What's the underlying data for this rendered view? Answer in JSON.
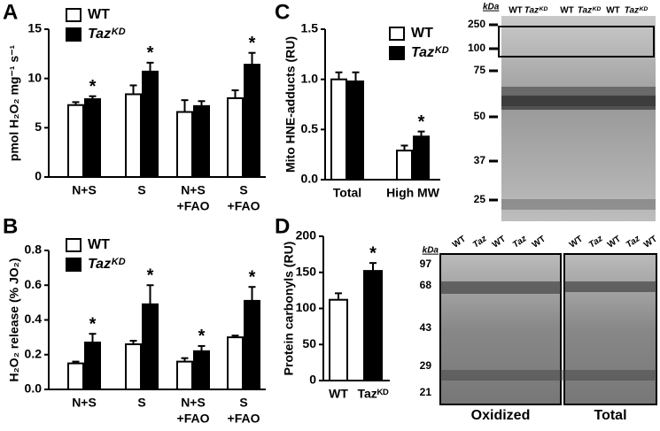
{
  "panels": [
    "A",
    "B",
    "C",
    "D"
  ],
  "chart_data": [
    {
      "type": "bar",
      "ylabel": "pmol H₂O₂ mg⁻¹ s⁻¹",
      "categories": [
        [
          "N+S"
        ],
        [
          "S"
        ],
        [
          "N+S",
          "+FAO"
        ],
        [
          "S",
          "+FAO"
        ]
      ],
      "series": [
        {
          "name": "WT",
          "color": "#ffffff",
          "values": [
            7.3,
            8.4,
            6.6,
            8.0
          ],
          "errors": [
            0.3,
            0.9,
            1.2,
            0.8
          ]
        },
        {
          "name": "Tazᴷᴰ",
          "color": "#000000",
          "values": [
            7.9,
            10.7,
            7.2,
            11.4
          ],
          "errors": [
            0.3,
            0.9,
            0.5,
            1.2
          ]
        }
      ],
      "markers": [
        "*",
        "*",
        null,
        "*"
      ],
      "ylim": [
        0,
        15
      ],
      "yticks": [
        0,
        5,
        10,
        15
      ]
    },
    {
      "type": "bar",
      "ylabel": "H₂O₂ release (% JO₂)",
      "categories": [
        [
          "N+S"
        ],
        [
          "S"
        ],
        [
          "N+S",
          "+FAO"
        ],
        [
          "S",
          "+FAO"
        ]
      ],
      "series": [
        {
          "name": "WT",
          "color": "#ffffff",
          "values": [
            0.15,
            0.26,
            0.16,
            0.3
          ],
          "errors": [
            0.01,
            0.02,
            0.02,
            0.01
          ]
        },
        {
          "name": "Tazᴷᴰ",
          "color": "#000000",
          "values": [
            0.27,
            0.49,
            0.22,
            0.51
          ],
          "errors": [
            0.05,
            0.11,
            0.03,
            0.08
          ]
        }
      ],
      "markers": [
        "*",
        "*",
        "*",
        "*"
      ],
      "ylim": [
        0,
        0.8
      ],
      "yticks": [
        {
          "value": 0,
          "label": "0.0"
        },
        0.2,
        0.4,
        0.6,
        0.8
      ]
    },
    {
      "type": "bar",
      "ylabel": "Mito HNE-adducts (RU)",
      "categories": [
        [
          "Total"
        ],
        [
          "High MW"
        ]
      ],
      "series": [
        {
          "name": "WT",
          "color": "#ffffff",
          "values": [
            1.0,
            0.29
          ],
          "errors": [
            0.07,
            0.05
          ]
        },
        {
          "name": "Tazᴷᴰ",
          "color": "#000000",
          "values": [
            0.98,
            0.43
          ],
          "errors": [
            0.09,
            0.05
          ]
        }
      ],
      "markers": [
        null,
        "*"
      ],
      "ylim": [
        0,
        1.5
      ],
      "yticks": [
        {
          "value": 0,
          "label": "0.0"
        },
        0.5,
        {
          "value": 1,
          "label": "1.0"
        },
        1.5
      ]
    },
    {
      "type": "bar",
      "ylabel": "Protein carbonyls (RU)",
      "categories": [
        [
          "WT"
        ],
        [
          "Tazᴷᴰ"
        ]
      ],
      "values": [
        112,
        152
      ],
      "errors": [
        9,
        11
      ],
      "colors": [
        "#ffffff",
        "#000000"
      ],
      "markers": [
        null,
        "*"
      ],
      "ylim": [
        0,
        200
      ],
      "yticks": [
        0,
        50,
        100,
        150,
        200
      ]
    }
  ],
  "blots": [
    {
      "unit": "kDa",
      "sizes": [
        "250",
        "100",
        "75",
        "50",
        "37",
        "25"
      ],
      "lanes": [
        "WT",
        "Tazᴷᴰ",
        "WT",
        "Tazᴷᴰ",
        "WT",
        "Tazᴷᴰ"
      ]
    },
    {
      "unit": "kDa",
      "sizes": [
        "97",
        "68",
        "43",
        "29",
        "21"
      ],
      "lanes": [
        "WT",
        "Taz",
        "WT",
        "Taz",
        "WT"
      ],
      "caption": "Oxidized"
    },
    {
      "lanes": [
        "WT",
        "Taz",
        "WT",
        "Taz",
        "WT"
      ],
      "caption": "Total"
    }
  ]
}
